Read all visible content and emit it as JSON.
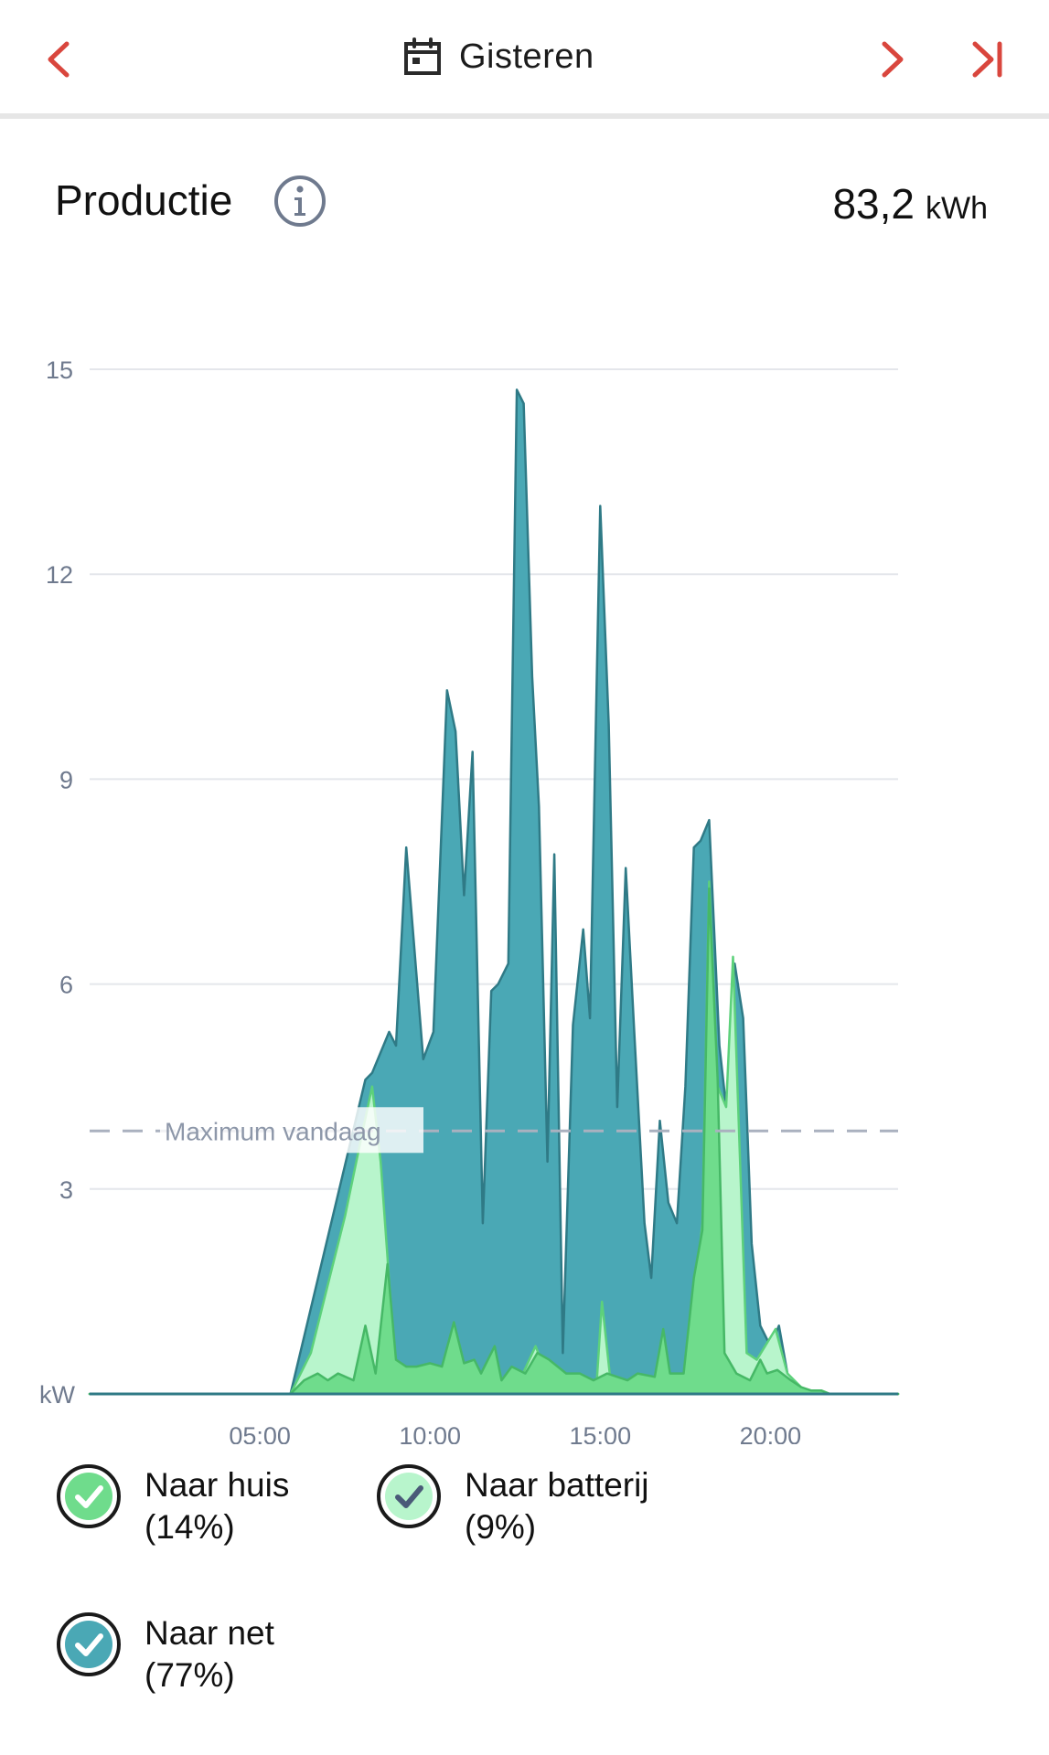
{
  "header": {
    "date_label": "Gisteren",
    "icons": {
      "prev": "chevron-left-icon",
      "calendar": "calendar-icon",
      "next": "chevron-right-icon",
      "last": "skip-to-last-icon"
    },
    "accent_color": "#d9463d"
  },
  "summary": {
    "title": "Productie",
    "info_icon": "info-icon",
    "total_value": "83,2",
    "total_unit": "kWh"
  },
  "legend": {
    "items": [
      {
        "label": "Naar huis",
        "percent": "(14%)",
        "color": "#6fdc8c",
        "checked": true
      },
      {
        "label": "Naar batterij",
        "percent": "(9%)",
        "color": "#b8f5cc",
        "checked": true
      },
      {
        "label": "Naar net",
        "percent": "(77%)",
        "color": "#4aa8b5",
        "checked": true
      }
    ]
  },
  "chart_data": {
    "type": "area",
    "ylabel": "kW",
    "ylim": [
      0,
      15
    ],
    "yticks": [
      3,
      6,
      9,
      12,
      15
    ],
    "xlim": [
      0,
      23.75
    ],
    "xticks": [
      {
        "value": 5,
        "label": "05:00"
      },
      {
        "value": 10,
        "label": "10:00"
      },
      {
        "value": 15,
        "label": "15:00"
      },
      {
        "value": 20,
        "label": "20:00"
      }
    ],
    "grid": true,
    "reference_line": {
      "label": "Maximum vandaag",
      "value": 3.85
    },
    "series": [
      {
        "name": "Naar net",
        "color": "#4aa8b5",
        "stroke": "#2f7a86",
        "points": [
          [
            0,
            0
          ],
          [
            5.9,
            0
          ],
          [
            8.1,
            4.6
          ],
          [
            8.3,
            4.7
          ],
          [
            8.8,
            5.3
          ],
          [
            9.0,
            5.1
          ],
          [
            9.3,
            8.0
          ],
          [
            9.8,
            4.9
          ],
          [
            10.1,
            5.3
          ],
          [
            10.5,
            10.3
          ],
          [
            10.75,
            9.7
          ],
          [
            11.0,
            7.3
          ],
          [
            11.25,
            9.4
          ],
          [
            11.55,
            2.5
          ],
          [
            11.8,
            5.9
          ],
          [
            12.0,
            6.0
          ],
          [
            12.3,
            6.3
          ],
          [
            12.55,
            14.7
          ],
          [
            12.75,
            14.5
          ],
          [
            13.0,
            10.5
          ],
          [
            13.2,
            8.6
          ],
          [
            13.45,
            3.4
          ],
          [
            13.65,
            7.9
          ],
          [
            13.9,
            0.6
          ],
          [
            14.2,
            5.4
          ],
          [
            14.5,
            6.8
          ],
          [
            14.7,
            5.5
          ],
          [
            15.0,
            13.0
          ],
          [
            15.25,
            9.8
          ],
          [
            15.5,
            4.2
          ],
          [
            15.75,
            7.7
          ],
          [
            16.0,
            5.3
          ],
          [
            16.3,
            2.5
          ],
          [
            16.5,
            1.7
          ],
          [
            16.75,
            4.0
          ],
          [
            17.0,
            2.8
          ],
          [
            17.25,
            2.5
          ],
          [
            17.5,
            4.5
          ],
          [
            17.75,
            8.0
          ],
          [
            17.95,
            8.1
          ],
          [
            18.2,
            8.4
          ],
          [
            18.5,
            5.1
          ],
          [
            18.7,
            4.2
          ],
          [
            18.95,
            6.3
          ],
          [
            19.2,
            5.5
          ],
          [
            19.45,
            2.2
          ],
          [
            19.7,
            1.0
          ],
          [
            20.0,
            0.7
          ],
          [
            20.25,
            1.0
          ],
          [
            20.5,
            0.3
          ],
          [
            20.8,
            0.05
          ],
          [
            21.1,
            0
          ],
          [
            23.75,
            0
          ]
        ]
      },
      {
        "name": "Naar batterij",
        "color": "#b8f5cc",
        "stroke": "#5dd17b",
        "points": [
          [
            0,
            0
          ],
          [
            5.9,
            0
          ],
          [
            6.5,
            0.6
          ],
          [
            7.0,
            1.6
          ],
          [
            7.5,
            2.6
          ],
          [
            8.0,
            3.8
          ],
          [
            8.3,
            4.5
          ],
          [
            8.55,
            3.4
          ],
          [
            8.75,
            2.0
          ],
          [
            8.95,
            0.5
          ],
          [
            9.3,
            0.1
          ],
          [
            9.8,
            0.05
          ],
          [
            12.5,
            0.05
          ],
          [
            13.1,
            0.7
          ],
          [
            13.5,
            0.2
          ],
          [
            14.9,
            0.2
          ],
          [
            15.05,
            1.35
          ],
          [
            15.3,
            0.2
          ],
          [
            17.5,
            0.2
          ],
          [
            18.0,
            2.5
          ],
          [
            18.2,
            7.5
          ],
          [
            18.45,
            4.5
          ],
          [
            18.7,
            4.2
          ],
          [
            18.9,
            6.4
          ],
          [
            19.3,
            0.6
          ],
          [
            19.6,
            0.5
          ],
          [
            20.15,
            0.95
          ],
          [
            20.5,
            0.3
          ],
          [
            21.0,
            0.05
          ],
          [
            21.5,
            0
          ],
          [
            23.75,
            0
          ]
        ]
      },
      {
        "name": "Naar huis",
        "color": "#6fdc8c",
        "stroke": "#46b866",
        "points": [
          [
            0,
            0
          ],
          [
            5.9,
            0
          ],
          [
            6.3,
            0.2
          ],
          [
            6.7,
            0.3
          ],
          [
            7.0,
            0.2
          ],
          [
            7.3,
            0.3
          ],
          [
            7.75,
            0.2
          ],
          [
            8.1,
            1.0
          ],
          [
            8.4,
            0.3
          ],
          [
            8.75,
            1.9
          ],
          [
            9.0,
            0.5
          ],
          [
            9.3,
            0.4
          ],
          [
            9.6,
            0.4
          ],
          [
            10.0,
            0.45
          ],
          [
            10.35,
            0.4
          ],
          [
            10.7,
            1.05
          ],
          [
            11.0,
            0.45
          ],
          [
            11.3,
            0.5
          ],
          [
            11.5,
            0.3
          ],
          [
            11.9,
            0.7
          ],
          [
            12.1,
            0.2
          ],
          [
            12.4,
            0.4
          ],
          [
            12.8,
            0.3
          ],
          [
            13.15,
            0.6
          ],
          [
            13.5,
            0.5
          ],
          [
            14.0,
            0.3
          ],
          [
            14.4,
            0.3
          ],
          [
            14.8,
            0.2
          ],
          [
            15.2,
            0.3
          ],
          [
            15.8,
            0.2
          ],
          [
            16.1,
            0.3
          ],
          [
            16.6,
            0.25
          ],
          [
            16.85,
            0.95
          ],
          [
            17.05,
            0.3
          ],
          [
            17.45,
            0.3
          ],
          [
            17.75,
            1.7
          ],
          [
            18.0,
            2.4
          ],
          [
            18.2,
            7.4
          ],
          [
            18.45,
            4.6
          ],
          [
            18.65,
            0.6
          ],
          [
            19.0,
            0.3
          ],
          [
            19.4,
            0.2
          ],
          [
            19.7,
            0.5
          ],
          [
            19.9,
            0.3
          ],
          [
            20.2,
            0.35
          ],
          [
            20.6,
            0.2
          ],
          [
            20.9,
            0.1
          ],
          [
            21.2,
            0.05
          ],
          [
            21.5,
            0.05
          ],
          [
            21.75,
            0
          ],
          [
            23.75,
            0
          ]
        ]
      }
    ]
  }
}
